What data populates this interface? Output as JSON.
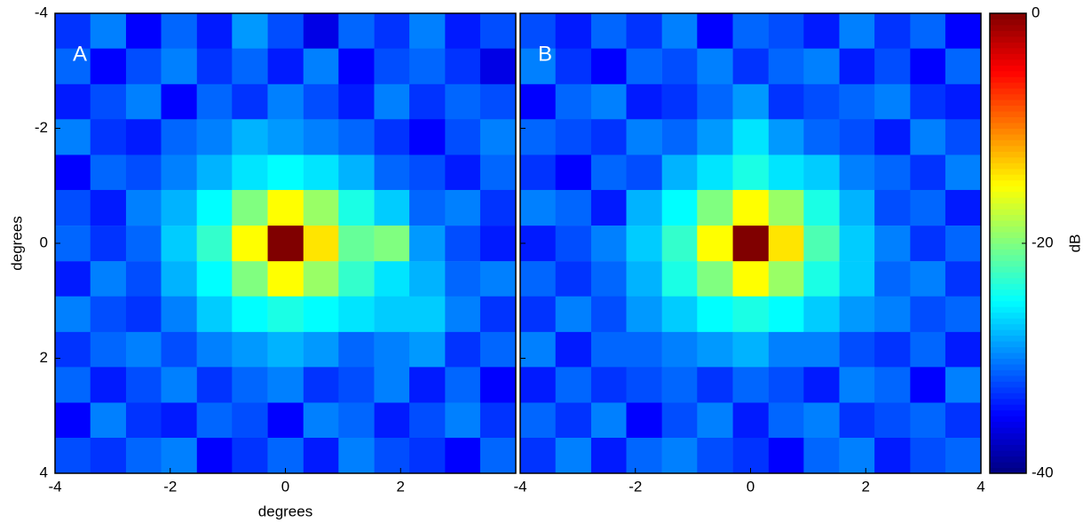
{
  "chart_data": [
    {
      "type": "heatmap",
      "label": "A",
      "xlabel": "degrees",
      "ylabel": "degrees",
      "colormap": "jet",
      "y_inverted": true,
      "ytick_labels": true,
      "xlim": [
        -4,
        4
      ],
      "ylim": [
        -4,
        4
      ],
      "xticks": [
        -4,
        -2,
        0,
        2
      ],
      "yticks": [
        -4,
        -2,
        0,
        2,
        4
      ],
      "x": [
        -3.69,
        -3.08,
        -2.46,
        -1.85,
        -1.23,
        -0.62,
        0,
        0.62,
        1.23,
        1.85,
        2.46,
        3.08,
        3.69
      ],
      "y": [
        -3.69,
        -3.08,
        -2.46,
        -1.85,
        -1.23,
        -0.62,
        0,
        0.62,
        1.23,
        1.85,
        2.46,
        3.08,
        3.69
      ],
      "z": [
        [
          -33,
          -30,
          -35,
          -31,
          -34,
          -29,
          -32,
          -36,
          -31,
          -33,
          -30,
          -34,
          -32
        ],
        [
          -31,
          -35,
          -32,
          -30,
          -33,
          -31,
          -34,
          -30,
          -35,
          -32,
          -31,
          -33,
          -36
        ],
        [
          -34,
          -32,
          -30,
          -35,
          -31,
          -33,
          -30,
          -32,
          -34,
          -30,
          -33,
          -31,
          -32
        ],
        [
          -30,
          -33,
          -34,
          -31,
          -30,
          -28,
          -29,
          -30,
          -31,
          -33,
          -35,
          -32,
          -30
        ],
        [
          -35,
          -31,
          -32,
          -30,
          -28,
          -26,
          -25,
          -26,
          -28,
          -31,
          -32,
          -34,
          -31
        ],
        [
          -32,
          -34,
          -30,
          -28,
          -25,
          -20,
          -15,
          -19,
          -24,
          -27,
          -31,
          -30,
          -33
        ],
        [
          -31,
          -33,
          -31,
          -27,
          -23,
          -15,
          0,
          -14,
          -21,
          -20,
          -29,
          -32,
          -34
        ],
        [
          -34,
          -30,
          -32,
          -28,
          -25,
          -20,
          -15,
          -19,
          -23,
          -26,
          -28,
          -31,
          -30
        ],
        [
          -30,
          -32,
          -33,
          -30,
          -27,
          -25,
          -24,
          -25,
          -26,
          -27,
          -27,
          -30,
          -33
        ],
        [
          -33,
          -31,
          -30,
          -32,
          -30,
          -29,
          -28,
          -29,
          -31,
          -30,
          -29,
          -33,
          -31
        ],
        [
          -31,
          -34,
          -32,
          -30,
          -33,
          -31,
          -30,
          -33,
          -32,
          -30,
          -34,
          -31,
          -35
        ],
        [
          -35,
          -30,
          -33,
          -34,
          -31,
          -32,
          -35,
          -30,
          -31,
          -34,
          -32,
          -30,
          -33
        ],
        [
          -32,
          -33,
          -31,
          -30,
          -35,
          -33,
          -31,
          -34,
          -30,
          -32,
          -33,
          -35,
          -31
        ]
      ]
    },
    {
      "type": "heatmap",
      "label": "B",
      "colormap": "jet",
      "y_inverted": true,
      "ytick_labels": false,
      "xlim": [
        -4,
        4
      ],
      "ylim": [
        -4,
        4
      ],
      "xticks": [
        -4,
        -2,
        0,
        2,
        4
      ],
      "yticks": [
        -4,
        -2,
        0,
        2,
        4
      ],
      "x": [
        -3.69,
        -3.08,
        -2.46,
        -1.85,
        -1.23,
        -0.62,
        0,
        0.62,
        1.23,
        1.85,
        2.46,
        3.08,
        3.69
      ],
      "y": [
        -3.69,
        -3.08,
        -2.46,
        -1.85,
        -1.23,
        -0.62,
        0,
        0.62,
        1.23,
        1.85,
        2.46,
        3.08,
        3.69
      ],
      "z": [
        [
          -32,
          -34,
          -31,
          -33,
          -30,
          -35,
          -31,
          -32,
          -34,
          -30,
          -33,
          -31,
          -35
        ],
        [
          -30,
          -33,
          -35,
          -31,
          -32,
          -30,
          -33,
          -31,
          -30,
          -34,
          -32,
          -35,
          -31
        ],
        [
          -35,
          -31,
          -30,
          -34,
          -33,
          -31,
          -29,
          -33,
          -32,
          -31,
          -30,
          -33,
          -34
        ],
        [
          -31,
          -32,
          -33,
          -30,
          -31,
          -29,
          -26,
          -29,
          -31,
          -32,
          -34,
          -30,
          -32
        ],
        [
          -33,
          -35,
          -31,
          -32,
          -28,
          -26,
          -24,
          -26,
          -27,
          -30,
          -31,
          -33,
          -30
        ],
        [
          -30,
          -31,
          -34,
          -28,
          -25,
          -20,
          -15,
          -19,
          -24,
          -28,
          -32,
          -31,
          -34
        ],
        [
          -34,
          -32,
          -30,
          -27,
          -23,
          -15,
          0,
          -14,
          -22,
          -27,
          -30,
          -33,
          -31
        ],
        [
          -31,
          -33,
          -31,
          -28,
          -24,
          -20,
          -15,
          -19,
          -24,
          -27,
          -31,
          -30,
          -33
        ],
        [
          -33,
          -30,
          -32,
          -29,
          -27,
          -25,
          -24,
          -25,
          -27,
          -29,
          -30,
          -32,
          -31
        ],
        [
          -30,
          -34,
          -31,
          -31,
          -30,
          -29,
          -28,
          -30,
          -30,
          -32,
          -33,
          -31,
          -34
        ],
        [
          -34,
          -31,
          -33,
          -32,
          -31,
          -33,
          -31,
          -32,
          -34,
          -30,
          -31,
          -35,
          -30
        ],
        [
          -31,
          -33,
          -30,
          -35,
          -32,
          -30,
          -34,
          -31,
          -30,
          -33,
          -32,
          -31,
          -33
        ],
        [
          -33,
          -30,
          -34,
          -31,
          -30,
          -32,
          -33,
          -35,
          -31,
          -30,
          -34,
          -32,
          -31
        ]
      ]
    },
    {
      "type": "colorbar",
      "colormap": "jet",
      "label": "dB",
      "zlim": [
        -40,
        0
      ],
      "ticks": [
        0,
        -20,
        -40
      ]
    }
  ]
}
